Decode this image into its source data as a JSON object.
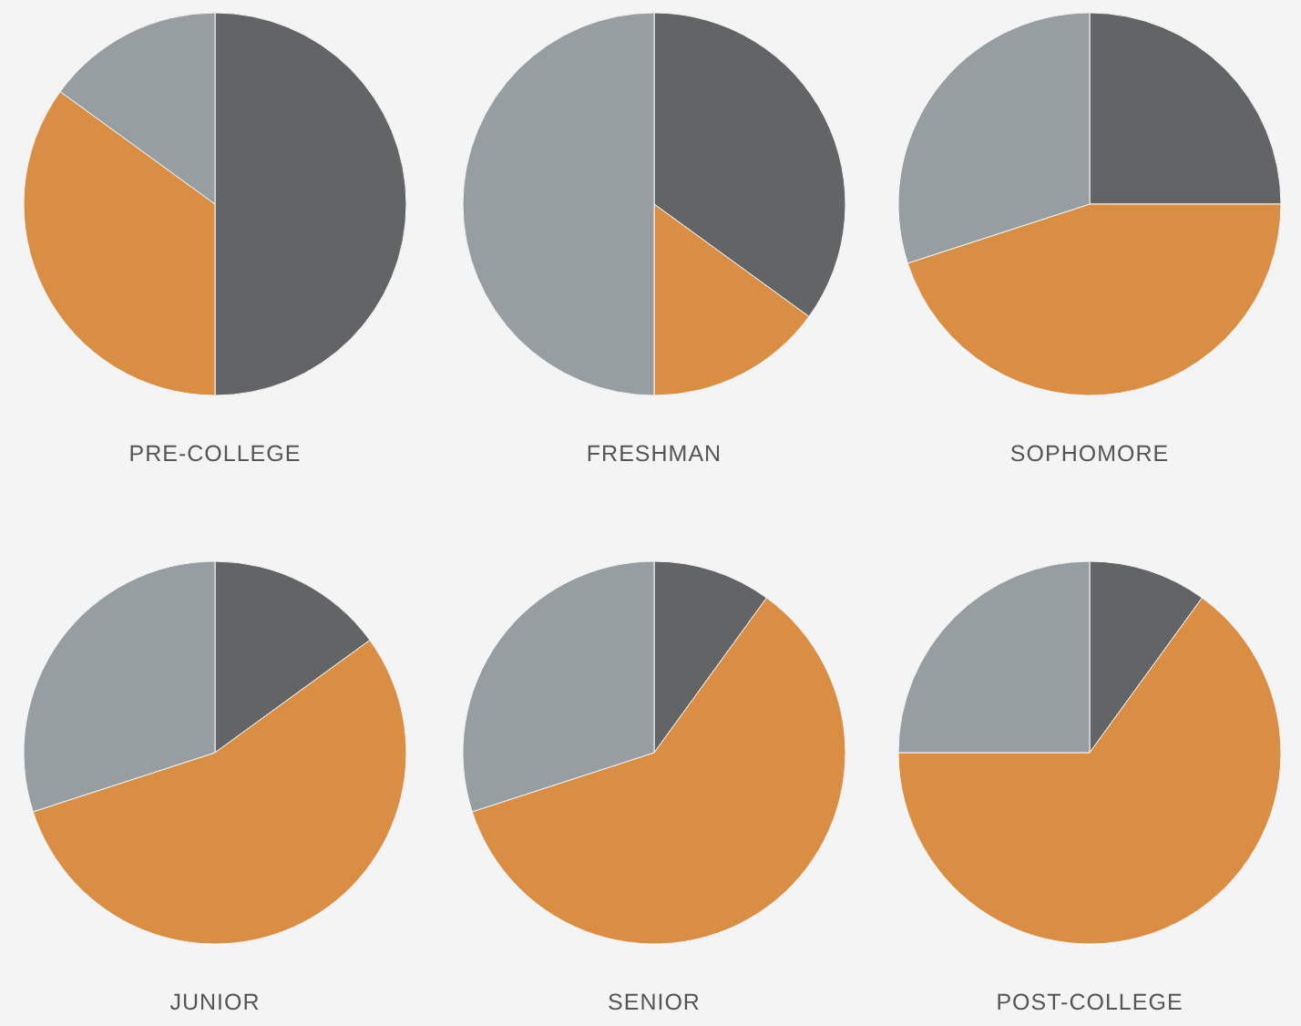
{
  "chart_data": [
    {
      "type": "pie",
      "title": "PRE-COLLEGE",
      "categories": [
        null,
        null,
        null
      ],
      "values": [
        50,
        35,
        15
      ],
      "colors": [
        "#636466",
        "#d98e44",
        "#969ea1"
      ]
    },
    {
      "type": "pie",
      "title": "FRESHMAN",
      "categories": [
        null,
        null,
        null
      ],
      "values": [
        35,
        15,
        50
      ],
      "colors": [
        "#636466",
        "#d98e44",
        "#969ea1"
      ]
    },
    {
      "type": "pie",
      "title": "SOPHOMORE",
      "categories": [
        null,
        null,
        null
      ],
      "values": [
        25,
        45,
        30
      ],
      "colors": [
        "#636466",
        "#d98e44",
        "#969ea1"
      ]
    },
    {
      "type": "pie",
      "title": "JUNIOR",
      "categories": [
        null,
        null,
        null
      ],
      "values": [
        15,
        55,
        30
      ],
      "colors": [
        "#636466",
        "#d98e44",
        "#969ea1"
      ]
    },
    {
      "type": "pie",
      "title": "SENIOR",
      "categories": [
        null,
        null,
        null
      ],
      "values": [
        10,
        60,
        30
      ],
      "colors": [
        "#636466",
        "#d98e44",
        "#969ea1"
      ]
    },
    {
      "type": "pie",
      "title": "POST-COLLEGE",
      "categories": [
        null,
        null,
        null
      ],
      "values": [
        10,
        65,
        25
      ],
      "colors": [
        "#636466",
        "#d98e44",
        "#969ea1"
      ]
    }
  ]
}
